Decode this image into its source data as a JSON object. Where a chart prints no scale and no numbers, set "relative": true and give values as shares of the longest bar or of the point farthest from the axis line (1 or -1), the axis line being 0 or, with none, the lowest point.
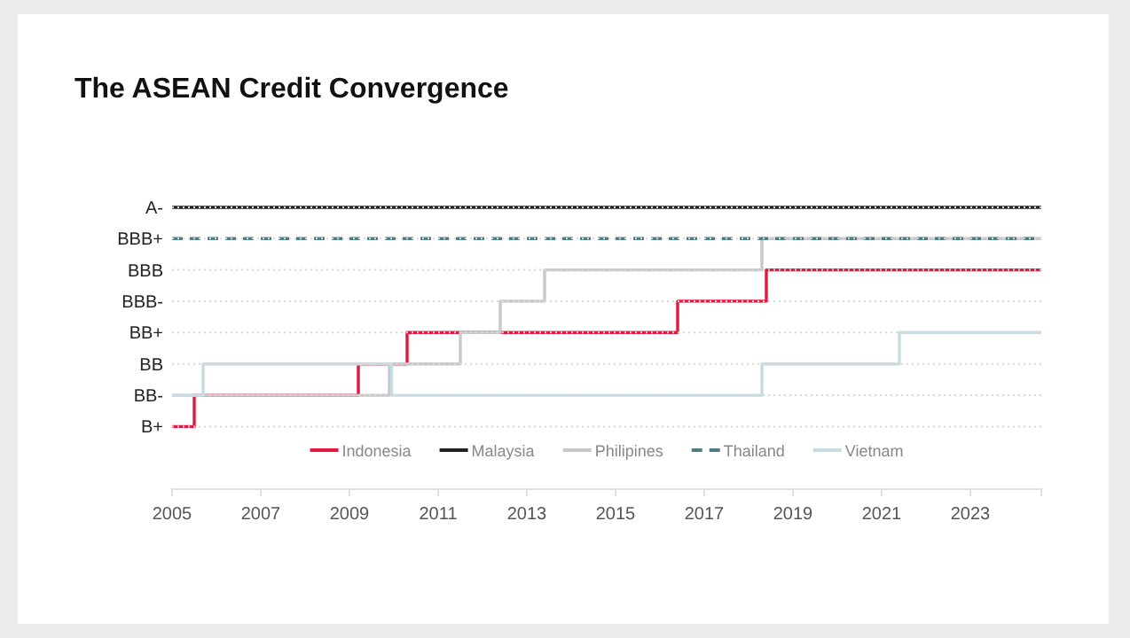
{
  "chart_data": {
    "type": "step",
    "title": "The ASEAN Credit Convergence",
    "relative": true,
    "xlim": [
      2005,
      2024.6
    ],
    "xticks": [
      2005,
      2007,
      2009,
      2011,
      2013,
      2015,
      2017,
      2019,
      2021,
      2023
    ],
    "legend": "bottom",
    "marker": "none",
    "ref_lines": [
      {
        "axis": "y",
        "value": 0.222,
        "label": "B+",
        "color": "#d8d8d8",
        "line_style": "dotted"
      },
      {
        "axis": "y",
        "value": 0.333,
        "label": "BB-",
        "color": "#d8d8d8",
        "line_style": "dotted"
      },
      {
        "axis": "y",
        "value": 0.444,
        "label": "BB",
        "color": "#d8d8d8",
        "line_style": "dotted"
      },
      {
        "axis": "y",
        "value": 0.556,
        "label": "BB+",
        "color": "#d8d8d8",
        "line_style": "dotted"
      },
      {
        "axis": "y",
        "value": 0.667,
        "label": "BBB-",
        "color": "#d8d8d8",
        "line_style": "dotted"
      },
      {
        "axis": "y",
        "value": 0.778,
        "label": "BBB",
        "color": "#d8d8d8",
        "line_style": "dotted"
      },
      {
        "axis": "y",
        "value": 0.889,
        "label": "BBB+",
        "color": "#d8d8d8",
        "line_style": "dotted"
      },
      {
        "axis": "y",
        "value": 1,
        "label": "A-",
        "color": "#d8d8d8",
        "line_style": "dotted"
      }
    ],
    "series": [
      {
        "name": "Indonesia",
        "color": "#e4173e",
        "x": [
          2005,
          2005.5,
          2009.2,
          2010.3,
          2016.4,
          2018.4,
          2024.6
        ],
        "values": [
          0.222,
          0.333,
          0.444,
          0.556,
          0.667,
          0.778,
          0.778
        ]
      },
      {
        "name": "Malaysia",
        "color": "#222222",
        "x": [
          2005,
          2024.6
        ],
        "values": [
          1,
          1
        ]
      },
      {
        "name": "Philipines",
        "color": "#c8c8c8",
        "x": [
          2005,
          2009.9,
          2011.5,
          2012.4,
          2013.4,
          2018.3,
          2024.6
        ],
        "values": [
          0.333,
          0.444,
          0.556,
          0.667,
          0.778,
          0.889,
          0.889
        ]
      },
      {
        "name": "Thailand",
        "color": "#4e7c84",
        "line_style": "dashed",
        "x": [
          2005,
          2024.6
        ],
        "values": [
          0.889,
          0.889
        ]
      },
      {
        "name": "Vietnam",
        "color": "#c6dce3",
        "x": [
          2005,
          2005.7,
          2009.95,
          2018.3,
          2021.4,
          2024.6
        ],
        "values": [
          0.333,
          0.444,
          0.333,
          0.444,
          0.556,
          0.556
        ]
      }
    ]
  }
}
